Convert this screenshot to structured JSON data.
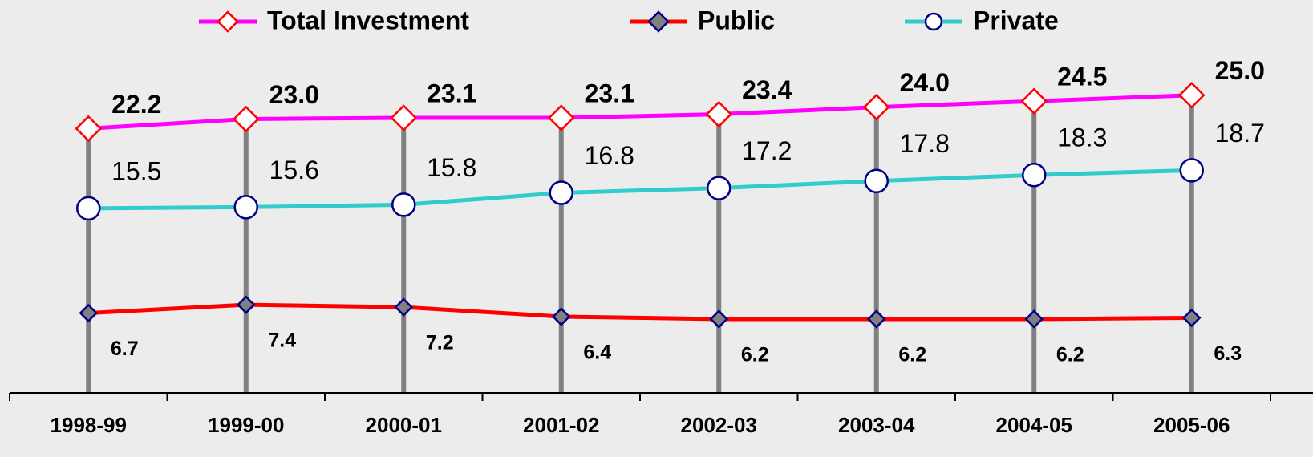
{
  "chart_data": {
    "type": "line",
    "categories": [
      "1998-99",
      "1999-00",
      "2000-01",
      "2001-02",
      "2002-03",
      "2003-04",
      "2004-05",
      "2005-06"
    ],
    "series": [
      {
        "name": "Total Investment",
        "color": "#ff00ff",
        "marker": "diamond",
        "marker_fill": "#ffffff",
        "marker_stroke": "#ff0000",
        "values": [
          22.2,
          23.0,
          23.1,
          23.1,
          23.4,
          24.0,
          24.5,
          25.0
        ],
        "value_labels": [
          "22.2",
          "23.0",
          "23.1",
          "23.1",
          "23.4",
          "24.0",
          "24.5",
          "25.0"
        ]
      },
      {
        "name": "Public",
        "color": "#ff0000",
        "marker": "diamond",
        "marker_fill": "#808080",
        "marker_stroke": "#000080",
        "values": [
          6.7,
          7.4,
          7.2,
          6.4,
          6.2,
          6.2,
          6.2,
          6.3
        ]
      },
      {
        "name": "Private",
        "color": "#33cccc",
        "marker": "circle",
        "marker_fill": "#ffffff",
        "marker_stroke": "#000080",
        "values": [
          15.5,
          15.6,
          15.8,
          16.8,
          17.2,
          17.8,
          18.3,
          18.7
        ]
      }
    ],
    "ylim": [
      0,
      33
    ]
  }
}
